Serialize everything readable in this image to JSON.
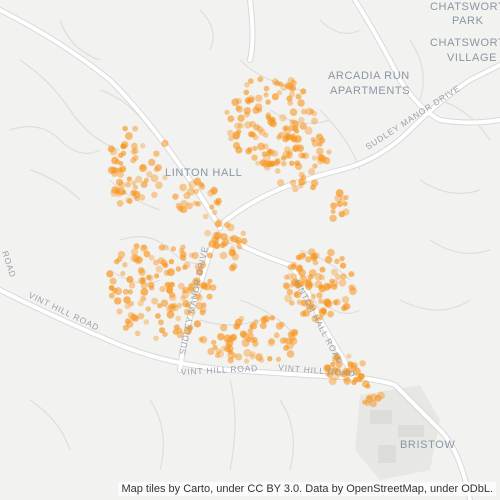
{
  "map": {
    "places": [
      {
        "id": "chatsworth-park-1",
        "text": "CHATSWORTH"
      },
      {
        "id": "chatsworth-park-2",
        "text": "PARK"
      },
      {
        "id": "chatsworth-village-1",
        "text": "CHATSWORTH"
      },
      {
        "id": "chatsworth-village-2",
        "text": "VILLAGE"
      },
      {
        "id": "arcadia-1",
        "text": "ARCADIA RUN"
      },
      {
        "id": "arcadia-2",
        "text": "APARTMENTS"
      },
      {
        "id": "linton-hall",
        "text": "LINTON HALL"
      },
      {
        "id": "bristow",
        "text": "BRISTOW"
      }
    ],
    "roads": [
      {
        "id": "sudley-manor-drive-ne",
        "text": "SUDLEY MANOR DRIVE"
      },
      {
        "id": "sudley-manor-drive-s",
        "text": "SUDLEY MANOR DRIVE"
      },
      {
        "id": "linton-hall-road",
        "text": "LINTON HALL ROAD"
      },
      {
        "id": "vint-hill-road-w",
        "text": "VINT HILL ROAD"
      },
      {
        "id": "vint-hill-road-c",
        "text": "VINT HILL ROAD"
      },
      {
        "id": "vint-hill-road-e",
        "text": "VINT HILL ROAD"
      },
      {
        "id": "road-edge",
        "text": "ROAD"
      }
    ],
    "attribution": "Map tiles by Carto, under CC BY 3.0. Data by OpenStreetMap, under ODbL.",
    "colors": {
      "background": "#f2f2f0",
      "road": "#ffffff",
      "road_casing": "#d9d9d9",
      "point": "#f7941d",
      "label": "#8a96a3"
    }
  }
}
